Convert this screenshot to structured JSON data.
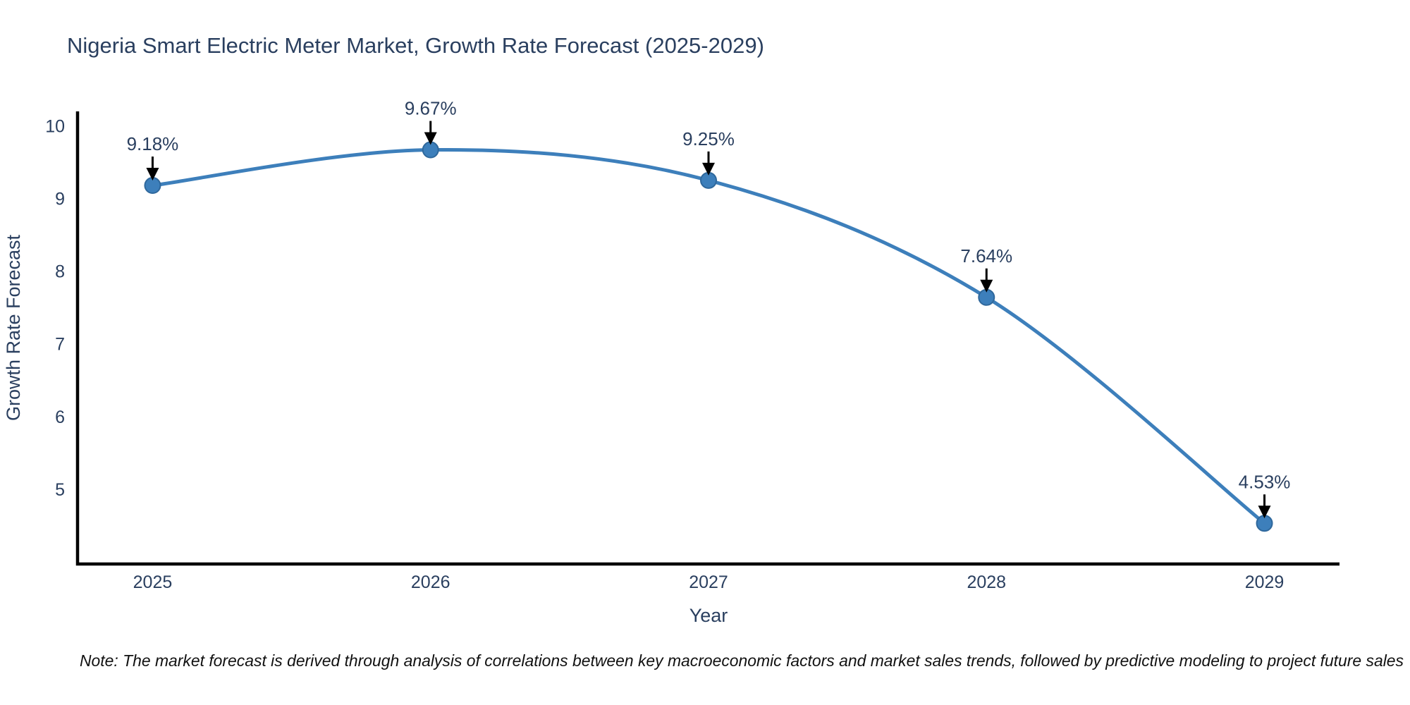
{
  "note": "Note: The market forecast is derived through analysis of correlations between key macroeconomic factors and market sales trends, followed by predictive modeling to project future sales",
  "chart_data": {
    "type": "line",
    "line_shape": "spline",
    "title": "Nigeria Smart Electric Meter Market, Growth Rate Forecast (2025-2029)",
    "xlabel": "Year",
    "ylabel": "Growth Rate Forecast",
    "x": [
      2025,
      2026,
      2027,
      2028,
      2029
    ],
    "series": [
      {
        "name": "Growth Rate Forecast",
        "values": [
          9.18,
          9.67,
          9.25,
          7.64,
          4.53
        ]
      }
    ],
    "point_labels": [
      "9.18%",
      "9.67%",
      "9.25%",
      "7.64%",
      "4.53%"
    ],
    "xticks": [
      "2025",
      "2026",
      "2027",
      "2028",
      "2029"
    ],
    "yticks": [
      5,
      6,
      7,
      8,
      9,
      10
    ],
    "xlim": [
      2024.73,
      2029.27
    ],
    "ylim": [
      3.97,
      10.18
    ],
    "grid": false,
    "legend": "none",
    "colors": {
      "line": "#3d7fbb",
      "marker": "#3d7fbb",
      "marker_edge": "#2f689c",
      "annotation_text": "#2a3f5f",
      "annotation_arrow": "#000000",
      "axis_line": "#000000",
      "tick_label": "#2a3f5f",
      "title": "#2a3f5f",
      "note_text": "#111111",
      "background": "#ffffff"
    }
  }
}
